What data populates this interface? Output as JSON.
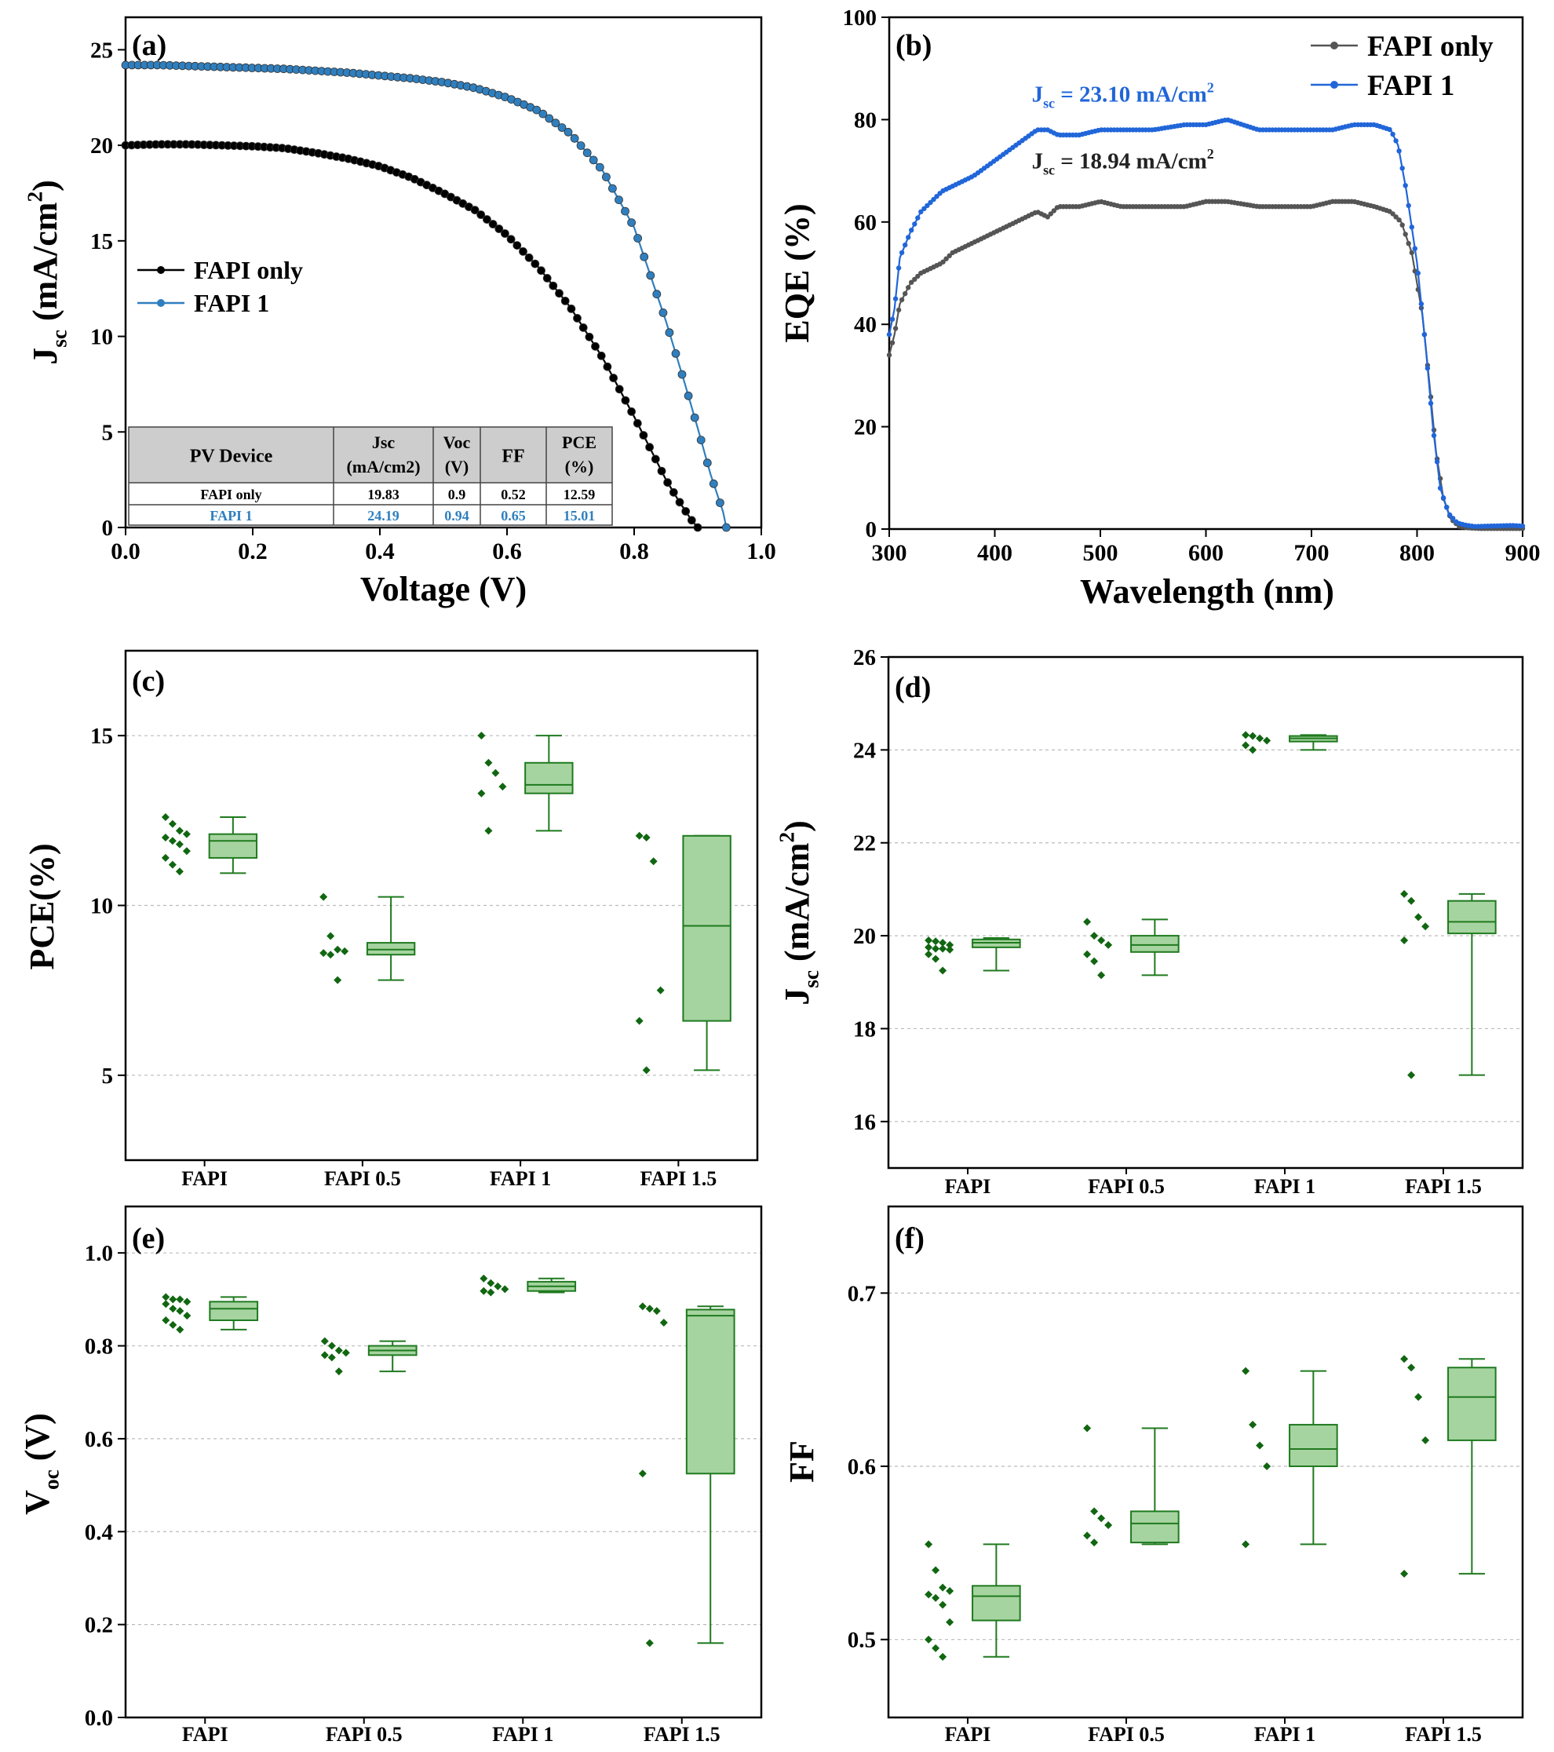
{
  "chart_data": [
    {
      "id": "a",
      "type": "line",
      "panel_label": "(a)",
      "xlabel": "Voltage (V)",
      "ylabel": {
        "main": "J",
        "sub": "sc",
        "rest": " (mA/cm",
        "sup": "2",
        "end": ")"
      },
      "xlim": [
        0,
        1.0
      ],
      "ylim": [
        0,
        26.7
      ],
      "xticks": [
        0.0,
        0.2,
        0.4,
        0.6,
        0.8,
        1.0
      ],
      "xtick_labels": [
        "0.0",
        "0.2",
        "0.4",
        "0.6",
        "0.8",
        "1.0"
      ],
      "yticks": [
        0,
        5,
        10,
        15,
        20,
        25
      ],
      "ytick_labels": [
        "0",
        "5",
        "10",
        "15",
        "20",
        "25"
      ],
      "legend": {
        "position": "middle-left"
      },
      "series": [
        {
          "name": "FAPI only",
          "color": "#000000",
          "x": [
            0,
            0.05,
            0.1,
            0.15,
            0.2,
            0.25,
            0.3,
            0.35,
            0.4,
            0.45,
            0.5,
            0.55,
            0.6,
            0.65,
            0.7,
            0.75,
            0.8,
            0.85,
            0.87,
            0.89,
            0.9
          ],
          "y": [
            20.0,
            20.05,
            20.05,
            20.0,
            19.95,
            19.85,
            19.6,
            19.3,
            18.9,
            18.3,
            17.5,
            16.6,
            15.3,
            13.6,
            11.5,
            8.9,
            5.8,
            2.5,
            1.4,
            0.4,
            0
          ]
        },
        {
          "name": "FAPI 1",
          "color": "#2f7fbf",
          "x": [
            0,
            0.05,
            0.1,
            0.15,
            0.2,
            0.25,
            0.3,
            0.35,
            0.4,
            0.45,
            0.5,
            0.55,
            0.6,
            0.65,
            0.7,
            0.75,
            0.8,
            0.85,
            0.88,
            0.9,
            0.92,
            0.94,
            0.945
          ],
          "y": [
            24.2,
            24.2,
            24.15,
            24.1,
            24.05,
            24.0,
            23.9,
            23.8,
            23.65,
            23.5,
            23.3,
            23.0,
            22.5,
            21.8,
            20.6,
            18.7,
            15.7,
            10.8,
            7.5,
            5.2,
            2.8,
            0.8,
            0
          ]
        }
      ],
      "table": {
        "headers": [
          [
            "PV Device"
          ],
          [
            "Jsc",
            "(mA/cm2)"
          ],
          [
            "Voc",
            "(V)"
          ],
          [
            "FF"
          ],
          [
            "PCE",
            "(%)"
          ]
        ],
        "rows": [
          {
            "color": "#000000",
            "cells": [
              "FAPI only",
              "19.83",
              "0.9",
              "0.52",
              "12.59"
            ]
          },
          {
            "color": "#2f7fbf",
            "cells": [
              "FAPI 1",
              "24.19",
              "0.94",
              "0.65",
              "15.01"
            ]
          }
        ]
      }
    },
    {
      "id": "b",
      "type": "line",
      "panel_label": "(b)",
      "xlabel": "Wavelength (nm)",
      "ylabel": {
        "main": "EQE (%)"
      },
      "xlim": [
        300,
        900
      ],
      "ylim": [
        0,
        100
      ],
      "xticks": [
        300,
        400,
        500,
        600,
        700,
        800,
        900
      ],
      "xtick_labels": [
        "300",
        "400",
        "500",
        "600",
        "700",
        "800",
        "900"
      ],
      "yticks": [
        0,
        20,
        40,
        60,
        80,
        100
      ],
      "ytick_labels": [
        "0",
        "20",
        "40",
        "60",
        "80",
        "100"
      ],
      "legend": {
        "position": "top-right"
      },
      "series": [
        {
          "name": "FAPI only",
          "color": "#555555",
          "x": [
            300,
            305,
            310,
            320,
            330,
            340,
            350,
            360,
            380,
            400,
            420,
            440,
            450,
            460,
            480,
            500,
            520,
            550,
            580,
            600,
            620,
            650,
            680,
            700,
            720,
            740,
            760,
            775,
            785,
            795,
            805,
            812,
            818,
            825,
            832,
            840,
            850,
            860,
            880,
            900
          ],
          "y": [
            34,
            38,
            44,
            48,
            50,
            51,
            52,
            54,
            56,
            58,
            60,
            62,
            61,
            63,
            63,
            64,
            63,
            63,
            63,
            64,
            64,
            63,
            63,
            63,
            64,
            64,
            63,
            62,
            60,
            54,
            42,
            28,
            15,
            6,
            2,
            0.5,
            0.2,
            0.1,
            0.1,
            0.1
          ]
        },
        {
          "name": "FAPI 1",
          "color": "#2166d9",
          "x": [
            300,
            305,
            310,
            320,
            330,
            340,
            350,
            360,
            380,
            400,
            420,
            440,
            450,
            460,
            480,
            500,
            520,
            550,
            580,
            600,
            620,
            650,
            680,
            700,
            720,
            740,
            760,
            775,
            782,
            790,
            800,
            808,
            815,
            822,
            830,
            838,
            845,
            855,
            870,
            890,
            900
          ],
          "y": [
            38,
            43,
            53,
            58,
            62,
            64,
            66,
            67,
            69,
            72,
            75,
            78,
            78,
            77,
            77,
            78,
            78,
            78,
            79,
            79,
            80,
            78,
            78,
            78,
            78,
            79,
            79,
            78,
            75,
            66,
            52,
            36,
            20,
            8,
            3,
            1.2,
            0.8,
            0.5,
            0.6,
            0.7,
            0.6
          ]
        }
      ],
      "annotations": [
        {
          "main": "J",
          "sub": "sc",
          "rest": " = 23.10 mA/cm",
          "sup": "2",
          "color": "#2166d9",
          "x": 435,
          "y": 83.5
        },
        {
          "main": "J",
          "sub": "sc",
          "rest": " = 18.94 mA/cm",
          "sup": "2",
          "color": "#222222",
          "x": 435,
          "y": 70.5
        }
      ]
    },
    {
      "id": "c",
      "type": "box",
      "panel_label": "(c)",
      "ylabel": {
        "main": "PCE(%)"
      },
      "ylim": [
        2.5,
        17.5
      ],
      "yticks": [
        5,
        10,
        15
      ],
      "ytick_labels": [
        "5",
        "10",
        "15"
      ],
      "categories": [
        "FAPI",
        "FAPI 0.5",
        "FAPI 1",
        "FAPI 1.5"
      ],
      "boxes": [
        {
          "q1": 11.4,
          "median": 11.9,
          "q3": 12.1,
          "whisker_low": 10.95,
          "whisker_high": 12.6,
          "points": [
            12.6,
            12.4,
            12.2,
            12.1,
            12.0,
            11.9,
            11.8,
            11.6,
            11.4,
            11.2,
            11.0
          ]
        },
        {
          "q1": 8.55,
          "median": 8.7,
          "q3": 8.9,
          "whisker_low": 7.8,
          "whisker_high": 10.25,
          "points": [
            10.25,
            9.1,
            8.7,
            8.65,
            8.6,
            8.55,
            7.8
          ]
        },
        {
          "q1": 13.3,
          "median": 13.55,
          "q3": 14.2,
          "whisker_low": 12.2,
          "whisker_high": 15.0,
          "points": [
            15.0,
            14.2,
            13.9,
            13.5,
            13.3,
            12.2
          ]
        },
        {
          "q1": 6.6,
          "median": 9.4,
          "q3": 12.05,
          "whisker_low": 5.15,
          "whisker_high": 12.05,
          "points": [
            12.05,
            12.0,
            11.3,
            7.5,
            6.6,
            5.15
          ]
        }
      ]
    },
    {
      "id": "d",
      "type": "box",
      "panel_label": "(d)",
      "ylabel": {
        "main": "J",
        "sub": "sc",
        "rest": " (mA/cm",
        "sup": "2",
        "end": ")"
      },
      "ylim": [
        15,
        26
      ],
      "yticks": [
        16,
        18,
        20,
        22,
        24,
        26
      ],
      "ytick_labels": [
        "16",
        "18",
        "20",
        "22",
        "24",
        "26"
      ],
      "categories": [
        "FAPI",
        "FAPI 0.5",
        "FAPI 1",
        "FAPI 1.5"
      ],
      "boxes": [
        {
          "q1": 19.75,
          "median": 19.85,
          "q3": 19.92,
          "whisker_low": 19.25,
          "whisker_high": 19.95,
          "points": [
            19.9,
            19.88,
            19.85,
            19.8,
            19.75,
            19.72,
            19.72,
            19.7,
            19.6,
            19.5,
            19.25
          ]
        },
        {
          "q1": 19.65,
          "median": 19.8,
          "q3": 20.0,
          "whisker_low": 19.15,
          "whisker_high": 20.35,
          "points": [
            20.3,
            20.0,
            19.9,
            19.8,
            19.6,
            19.45,
            19.15
          ]
        },
        {
          "q1": 24.18,
          "median": 24.25,
          "q3": 24.3,
          "whisker_low": 24.0,
          "whisker_high": 24.32,
          "points": [
            24.32,
            24.3,
            24.25,
            24.2,
            24.1,
            24.0
          ]
        },
        {
          "q1": 20.05,
          "median": 20.3,
          "q3": 20.75,
          "whisker_low": 17.0,
          "whisker_high": 20.9,
          "points": [
            20.9,
            20.75,
            20.4,
            20.2,
            19.9,
            17.0
          ]
        }
      ]
    },
    {
      "id": "e",
      "type": "box",
      "panel_label": "(e)",
      "ylabel": {
        "main": "V",
        "sub": "oc",
        "rest": " (V)"
      },
      "ylim": [
        0.0,
        1.1
      ],
      "yticks": [
        0.0,
        0.2,
        0.4,
        0.6,
        0.8,
        1.0
      ],
      "ytick_labels": [
        "0.0",
        "0.2",
        "0.4",
        "0.6",
        "0.8",
        "1.0"
      ],
      "categories": [
        "FAPI",
        "FAPI 0.5",
        "FAPI 1",
        "FAPI 1.5"
      ],
      "boxes": [
        {
          "q1": 0.855,
          "median": 0.88,
          "q3": 0.895,
          "whisker_low": 0.835,
          "whisker_high": 0.905,
          "points": [
            0.905,
            0.9,
            0.9,
            0.895,
            0.89,
            0.88,
            0.875,
            0.865,
            0.855,
            0.845,
            0.835
          ]
        },
        {
          "q1": 0.78,
          "median": 0.79,
          "q3": 0.8,
          "whisker_low": 0.745,
          "whisker_high": 0.81,
          "points": [
            0.81,
            0.8,
            0.79,
            0.785,
            0.78,
            0.775,
            0.745
          ]
        },
        {
          "q1": 0.918,
          "median": 0.928,
          "q3": 0.938,
          "whisker_low": 0.915,
          "whisker_high": 0.945,
          "points": [
            0.945,
            0.935,
            0.928,
            0.922,
            0.918,
            0.915
          ]
        },
        {
          "q1": 0.525,
          "median": 0.865,
          "q3": 0.878,
          "whisker_low": 0.16,
          "whisker_high": 0.885,
          "points": [
            0.885,
            0.88,
            0.875,
            0.85,
            0.525,
            0.16
          ]
        }
      ]
    },
    {
      "id": "f",
      "type": "box",
      "panel_label": "(f)",
      "ylabel": {
        "main": "FF"
      },
      "ylim": [
        0.455,
        0.75
      ],
      "yticks": [
        0.5,
        0.6,
        0.7
      ],
      "ytick_labels": [
        "0.5",
        "0.6",
        "0.7"
      ],
      "categories": [
        "FAPI",
        "FAPI 0.5",
        "FAPI 1",
        "FAPI 1.5"
      ],
      "boxes": [
        {
          "q1": 0.511,
          "median": 0.525,
          "q3": 0.531,
          "whisker_low": 0.49,
          "whisker_high": 0.555,
          "points": [
            0.555,
            0.54,
            0.53,
            0.528,
            0.526,
            0.524,
            0.52,
            0.51,
            0.5,
            0.495,
            0.49
          ]
        },
        {
          "q1": 0.556,
          "median": 0.567,
          "q3": 0.574,
          "whisker_low": 0.555,
          "whisker_high": 0.622,
          "points": [
            0.622,
            0.574,
            0.57,
            0.566,
            0.56,
            0.556
          ]
        },
        {
          "q1": 0.6,
          "median": 0.61,
          "q3": 0.624,
          "whisker_low": 0.555,
          "whisker_high": 0.655,
          "points": [
            0.655,
            0.624,
            0.612,
            0.6,
            0.555
          ]
        },
        {
          "q1": 0.615,
          "median": 0.64,
          "q3": 0.657,
          "whisker_low": 0.538,
          "whisker_high": 0.662,
          "points": [
            0.662,
            0.657,
            0.64,
            0.615,
            0.538
          ]
        }
      ]
    }
  ]
}
